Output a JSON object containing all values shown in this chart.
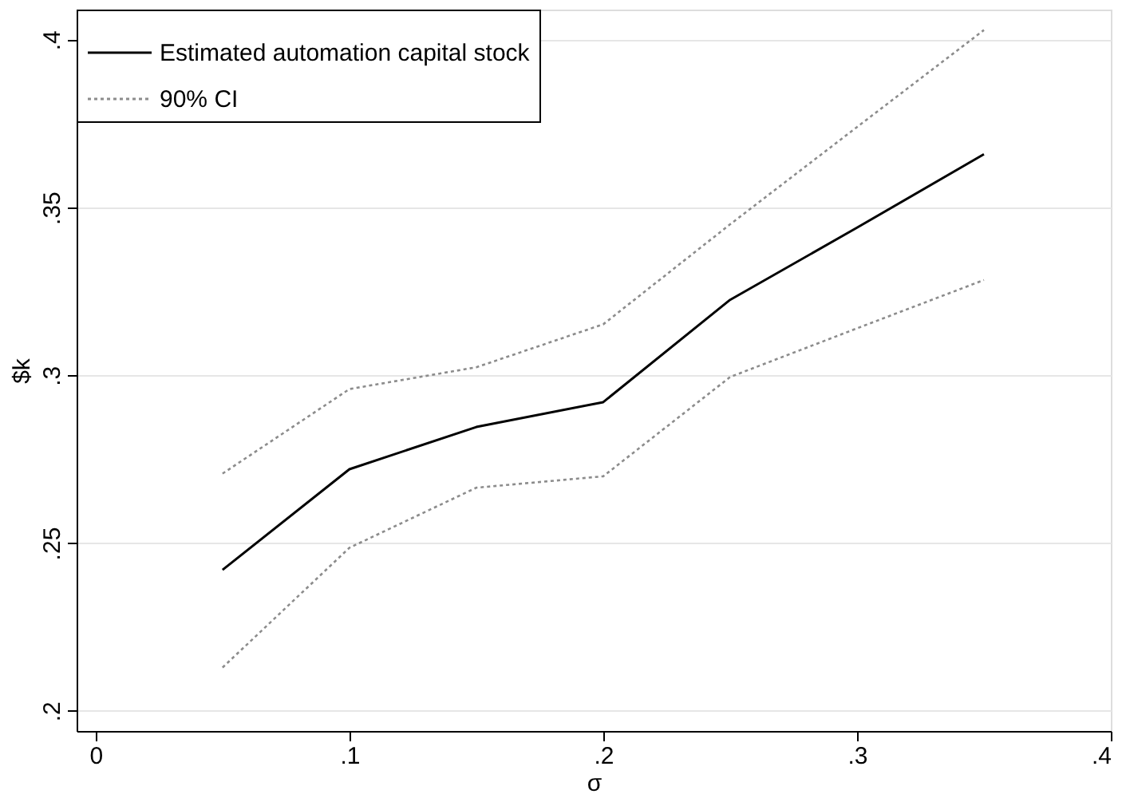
{
  "chart_data": {
    "type": "line",
    "xlabel": "σ",
    "ylabel": "$k",
    "x": [
      0.05,
      0.1,
      0.15,
      0.2,
      0.25,
      0.3,
      0.35
    ],
    "series": [
      {
        "name": "Estimated automation capital stock",
        "color": "#000000",
        "line_style": "solid",
        "values": [
          0.242,
          0.272,
          0.2846,
          0.292,
          0.3225,
          0.344,
          0.3659
        ]
      },
      {
        "name": "90% CI",
        "color": "#8c8c8c",
        "line_style": "dotted",
        "values": [
          0.2707,
          0.2959,
          0.3024,
          0.3152,
          0.345,
          0.374,
          0.4029
        ]
      },
      {
        "color": "#8c8c8c",
        "line_style": "dotted",
        "values": [
          0.2129,
          0.2486,
          0.2665,
          0.2699,
          0.2995,
          0.314,
          0.3284
        ]
      }
    ],
    "xlim": [
      -0.0075,
      0.4
    ],
    "ylim": [
      0.194,
      0.409
    ],
    "xticks": [
      {
        "value": 0,
        "label": "0"
      },
      {
        "value": 0.1,
        "label": ".1"
      },
      {
        "value": 0.2,
        "label": ".2"
      },
      {
        "value": 0.3,
        "label": ".3"
      },
      {
        "value": 0.4,
        "label": ".4"
      }
    ],
    "yticks": [
      {
        "value": 0.2,
        "label": ".2"
      },
      {
        "value": 0.25,
        "label": ".25"
      },
      {
        "value": 0.3,
        "label": ".3"
      },
      {
        "value": 0.35,
        "label": ".35"
      },
      {
        "value": 0.4,
        "label": ".4"
      }
    ],
    "grid": "y",
    "legend": "top left",
    "marker": "none"
  }
}
